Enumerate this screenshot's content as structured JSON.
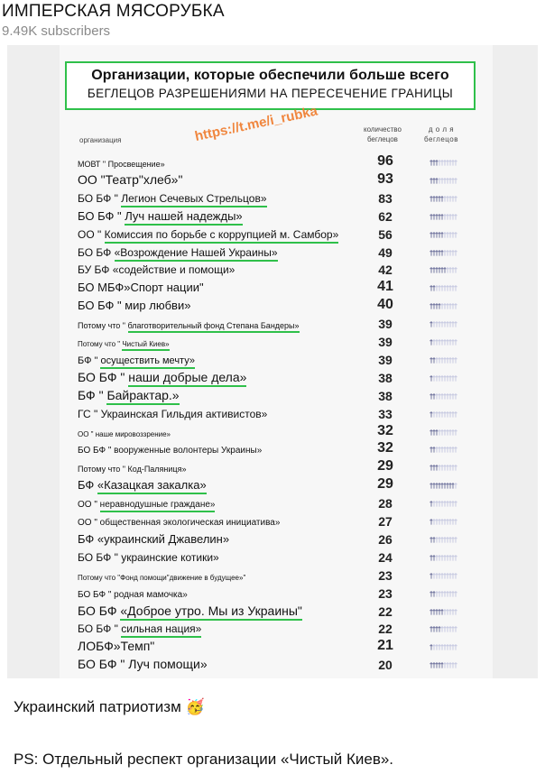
{
  "channel": {
    "name": "ИМПЕРСКАЯ МЯСОРУБКА",
    "subscribers": "9.49K subscribers"
  },
  "image": {
    "title_line1": "Организации, которые обеспечили больше всего",
    "title_line2": "БЕГЛЕЦОВ РАЗРЕШЕНИЯМИ НА ПЕРЕСЕЧЕНИЕ ГРАНИЦЫ",
    "watermark": "https://t.me/i_rubka",
    "columns": {
      "org": "организация",
      "count_l1": "количество",
      "count_l2": "беглецов",
      "share_l1": "д о л я",
      "share_l2": "беглецов"
    },
    "accent_color": "#2fc04a",
    "rows": [
      {
        "prefix": "МОВТ \" ",
        "name": "Просвещение»",
        "count": "96",
        "share_filled": 3,
        "underlined": false
      },
      {
        "prefix": "ОО ",
        "name": "\"Театр\"хлеб»\"",
        "count": "93",
        "share_filled": 3,
        "underlined": false
      },
      {
        "prefix": "БО БФ \" ",
        "name": "Легион Сечевых Стрельцов»",
        "count": "83",
        "share_filled": 5,
        "underlined": true
      },
      {
        "prefix": "БО БФ \" ",
        "name": "Луч нашей надежды»",
        "count": "62",
        "share_filled": 5,
        "underlined": true
      },
      {
        "prefix": "ОО \" ",
        "name": "Комиссия по борьбе с коррупцией м. Самбор»",
        "count": "56",
        "share_filled": 5,
        "underlined": true
      },
      {
        "prefix": "БО БФ ",
        "name": "«Возрождение Нашей Украины»",
        "count": "49",
        "share_filled": 5,
        "underlined": true
      },
      {
        "prefix": "БУ БФ ",
        "name": "«содействие и помощи»",
        "count": "42",
        "share_filled": 6,
        "underlined": false
      },
      {
        "prefix": "БО МБФ",
        "name": "»Спорт нации\"",
        "count": "41",
        "share_filled": 2,
        "underlined": false
      },
      {
        "prefix": "БО БФ \" ",
        "name": "мир любви»",
        "count": "40",
        "share_filled": 4,
        "underlined": false
      },
      {
        "prefix": "Потому что \" ",
        "name": "благотворительный фонд Степана Бандеры»",
        "count": "39",
        "share_filled": 1,
        "underlined": true
      },
      {
        "prefix": "Потому что \" ",
        "name": "Чистый Киев»",
        "count": "39",
        "share_filled": 1,
        "underlined": true
      },
      {
        "prefix": "БФ \" ",
        "name": "осуществить мечту»",
        "count": "39",
        "share_filled": 2,
        "underlined": true
      },
      {
        "prefix": "БО БФ \" ",
        "name": "наши добрые дела»",
        "count": "38",
        "share_filled": 1,
        "underlined": true
      },
      {
        "prefix": "БФ \" ",
        "name": "Байрактар.»",
        "count": "38",
        "share_filled": 2,
        "underlined": true
      },
      {
        "prefix": "ГС \" ",
        "name": "Украинская Гильдия активистов»",
        "count": "33",
        "share_filled": 1,
        "underlined": false
      },
      {
        "prefix": "ОО \" ",
        "name": "наше мировоззрение»",
        "count": "32",
        "share_filled": 3,
        "underlined": false
      },
      {
        "prefix": "БО БФ \" ",
        "name": "вооруженные волонтеры Украины»",
        "count": "32",
        "share_filled": 2,
        "underlined": false
      },
      {
        "prefix": "Потому что \" ",
        "name": "Код-Паляниця»",
        "count": "29",
        "share_filled": 3,
        "underlined": false
      },
      {
        "prefix": "БФ ",
        "name": "«Казацкая закалка»",
        "count": "29",
        "share_filled": 9,
        "underlined": true
      },
      {
        "prefix": "ОО \" ",
        "name": "неравнодушные граждане»",
        "count": "28",
        "share_filled": 1,
        "underlined": true
      },
      {
        "prefix": "ОО \" ",
        "name": "общественная экологическая инициатива»",
        "count": "27",
        "share_filled": 1,
        "underlined": false
      },
      {
        "prefix": "БФ ",
        "name": "«украинский Джавелин»",
        "count": "26",
        "share_filled": 2,
        "underlined": false
      },
      {
        "prefix": "БО БФ \" ",
        "name": "украинские котики»",
        "count": "24",
        "share_filled": 2,
        "underlined": false
      },
      {
        "prefix": "Потому что ",
        "name": "\"Фонд помощи\"движение в будущее»\"",
        "count": "23",
        "share_filled": 1,
        "underlined": false
      },
      {
        "prefix": "БО БФ \" ",
        "name": "родная мамочка»",
        "count": "23",
        "share_filled": 2,
        "underlined": false
      },
      {
        "prefix": "БО БФ ",
        "name": "«Доброе утро. Мы из Украины\"",
        "count": "22",
        "share_filled": 5,
        "underlined": true
      },
      {
        "prefix": "БО БФ \" ",
        "name": "сильная нация»",
        "count": "22",
        "share_filled": 4,
        "underlined": true
      },
      {
        "prefix": "ЛОБФ",
        "name": "»Темп\"",
        "count": "21",
        "share_filled": 1,
        "underlined": false
      },
      {
        "prefix": "БО БФ \" ",
        "name": "Луч помощи»",
        "count": "20",
        "share_filled": 5,
        "underlined": false
      }
    ]
  },
  "post": {
    "caption": "Украинский патриотизм",
    "emoji": "🥳",
    "ps": "PS: Отдельный респект организации «Чистый Киев»."
  }
}
